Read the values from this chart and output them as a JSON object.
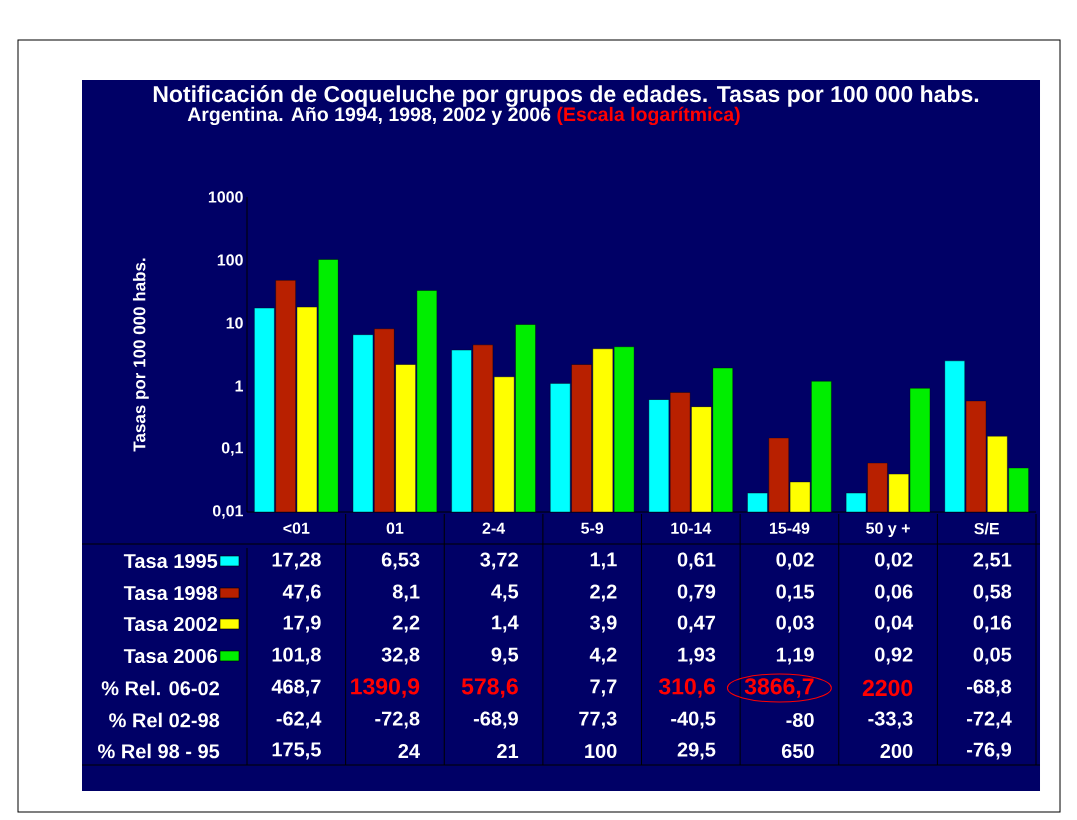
{
  "chart_data": {
    "type": "bar",
    "title": "Notificación de  Coqueluche por grupos de edades.  Tasas por 100 000 habs.",
    "subtitle": "Argentina. Año 1994, 1998, 2002 y 2006",
    "ylabel": "Tasas por 100 000 habs.",
    "categories": [
      "<01",
      "01",
      "2-4",
      "5-9",
      "10-14",
      "15-49",
      "50 y +",
      "S/E"
    ],
    "series": [
      {
        "name": "Tasa 1995",
        "color": "#00ffff",
        "values": [
          17.28,
          6.53,
          3.72,
          1.1,
          0.61,
          0.02,
          0.02,
          2.51
        ],
        "value_labels": [
          "17,28",
          "6,53",
          "3,72",
          "1,1",
          "0,61",
          "0,02",
          "0,02",
          "2,51"
        ]
      },
      {
        "name": "Tasa 1998",
        "color": "#b82000",
        "values": [
          47.6,
          8.1,
          4.5,
          2.2,
          0.79,
          0.15,
          0.06,
          0.58
        ],
        "value_labels": [
          "47,6",
          "8,1",
          "4,5",
          "2,2",
          "0,79",
          "0,15",
          "0,06",
          "0,58"
        ]
      },
      {
        "name": "Tasa 2002",
        "color": "#ffff00",
        "values": [
          17.9,
          2.2,
          1.4,
          3.9,
          0.47,
          0.03,
          0.04,
          0.16
        ],
        "value_labels": [
          "17,9",
          "2,2",
          "1,4",
          "3,9",
          "0,47",
          "0,03",
          "0,04",
          "0,16"
        ]
      },
      {
        "name": "Tasa 2006",
        "color": "#00ee00",
        "values": [
          101.8,
          32.8,
          9.5,
          4.2,
          1.93,
          1.19,
          0.92,
          0.05
        ],
        "value_labels": [
          "101,8",
          "32,8",
          "9,5",
          "4,2",
          "1,93",
          "1,19",
          "0,92",
          "0,05"
        ]
      }
    ],
    "log": true,
    "ylim": [
      0.01,
      1000
    ],
    "yticks": [
      {
        "value": 0.01,
        "label": "0,01"
      },
      {
        "value": 0.1,
        "label": "0,1"
      },
      1,
      10,
      100,
      1000
    ],
    "legend": "bottom",
    "grid": false,
    "annotations": [
      "(Escala logarítmica)",
      "% Rel. 06-02",
      "468,7",
      "1390,9",
      "578,6",
      "7,7",
      "310,6",
      "3866,7",
      "2200",
      "-68,8",
      "% Rel 02-98",
      "-62,4",
      "-72,8",
      "-68,9",
      "77,3",
      "-40,5",
      "-80",
      "-33,3",
      "-72,4",
      "% Rel 98 - 95",
      "175,5",
      "24",
      "21",
      "100",
      "29,5",
      "650",
      "200",
      "-76,9"
    ]
  }
}
